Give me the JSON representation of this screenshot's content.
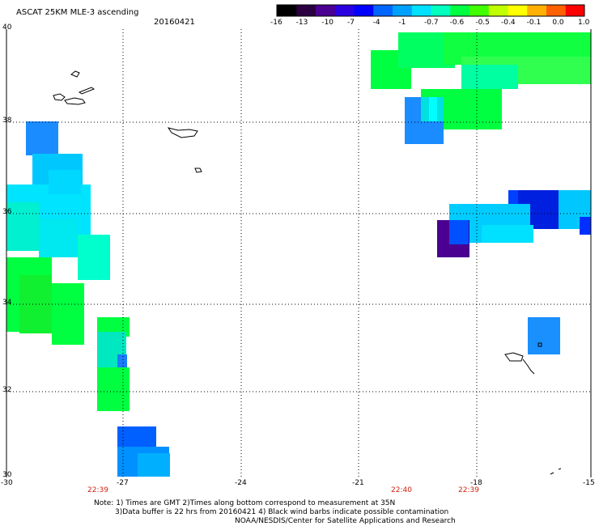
{
  "header": {
    "title": "ASCAT 25KM MLE-3 ascending",
    "date": "20160421"
  },
  "colorbar": {
    "ticks": [
      "-16",
      "-13",
      "-10",
      "-7",
      "-4",
      "-1",
      "-0.7",
      "-0.6",
      "-0.5",
      "-0.4",
      "-0.1",
      "0.0",
      "1.0"
    ],
    "colors": [
      "#000000",
      "#2a0040",
      "#4a0090",
      "#2a00e0",
      "#0000ff",
      "#0066ff",
      "#00a0ff",
      "#00e0ff",
      "#00ffc0",
      "#00ff40",
      "#40ff00",
      "#c0ff00",
      "#ffff00",
      "#ffb000",
      "#ff6000",
      "#ff0000"
    ]
  },
  "axes": {
    "lat_labels": [
      "40",
      "38",
      "36",
      "34",
      "32",
      "30"
    ],
    "lon_labels": [
      "-30",
      "-27",
      "-24",
      "-21",
      "-18",
      "-15"
    ]
  },
  "times": [
    "22:39",
    "22:40",
    "22:39"
  ],
  "notes": {
    "line1": "Note: 1) Times are GMT 2)Times along bottom correspond to measurement at 35N",
    "line2": "3)Data buffer is 22 hrs from 20160421 4) Black wind barbs indicate possible contamination",
    "line3": "NOAA/NESDIS/Center for Satellite Applications and Research"
  }
}
